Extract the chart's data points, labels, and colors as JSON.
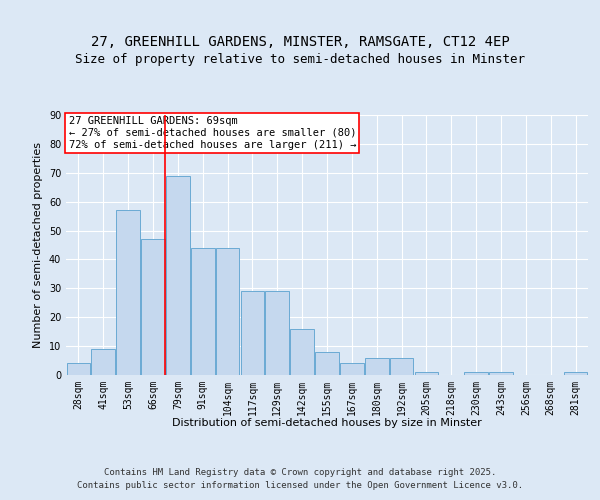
{
  "title_line1": "27, GREENHILL GARDENS, MINSTER, RAMSGATE, CT12 4EP",
  "title_line2": "Size of property relative to semi-detached houses in Minster",
  "xlabel": "Distribution of semi-detached houses by size in Minster",
  "ylabel": "Number of semi-detached properties",
  "categories": [
    "28sqm",
    "41sqm",
    "53sqm",
    "66sqm",
    "79sqm",
    "91sqm",
    "104sqm",
    "117sqm",
    "129sqm",
    "142sqm",
    "155sqm",
    "167sqm",
    "180sqm",
    "192sqm",
    "205sqm",
    "218sqm",
    "230sqm",
    "243sqm",
    "256sqm",
    "268sqm",
    "281sqm"
  ],
  "values": [
    4,
    9,
    57,
    47,
    69,
    44,
    44,
    29,
    29,
    16,
    8,
    4,
    6,
    6,
    1,
    0,
    1,
    1,
    0,
    0,
    1
  ],
  "bar_color": "#c5d8ee",
  "bar_edge_color": "#6aaad4",
  "vline_x": 3.5,
  "vline_color": "red",
  "annotation_text": "27 GREENHILL GARDENS: 69sqm\n← 27% of semi-detached houses are smaller (80)\n72% of semi-detached houses are larger (211) →",
  "annotation_box_color": "white",
  "annotation_box_edge": "red",
  "ylim": [
    0,
    90
  ],
  "yticks": [
    0,
    10,
    20,
    30,
    40,
    50,
    60,
    70,
    80,
    90
  ],
  "background_color": "#dce8f5",
  "plot_bg_color": "#dce8f5",
  "footer_line1": "Contains HM Land Registry data © Crown copyright and database right 2025.",
  "footer_line2": "Contains public sector information licensed under the Open Government Licence v3.0.",
  "title_fontsize": 10,
  "subtitle_fontsize": 9,
  "axis_label_fontsize": 8,
  "tick_fontsize": 7,
  "annotation_fontsize": 7.5,
  "footer_fontsize": 6.5
}
